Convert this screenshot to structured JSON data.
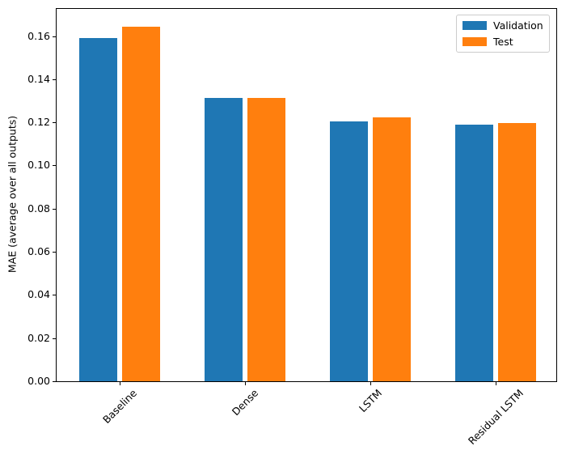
{
  "figure": {
    "background": "#ffffff",
    "text_color": "#000000",
    "axis_color": "#000000",
    "legend_border_color": "#cccccc"
  },
  "chart_data": {
    "type": "bar",
    "title": "",
    "xlabel": "",
    "ylabel": "MAE (average over all outputs)",
    "categories": [
      "Baseline",
      "Dense",
      "LSTM",
      "Residual LSTM"
    ],
    "series": [
      {
        "name": "Validation",
        "color": "#1f77b4",
        "values": [
          0.159,
          0.1315,
          0.1205,
          0.119
        ]
      },
      {
        "name": "Test",
        "color": "#ff7f0e",
        "values": [
          0.1645,
          0.1312,
          0.1222,
          0.1198
        ]
      }
    ],
    "ylim": [
      0,
      0.1726
    ],
    "yticks": [
      0.0,
      0.02,
      0.04,
      0.06,
      0.08,
      0.1,
      0.12,
      0.14,
      0.16
    ],
    "ytick_labels": [
      "0.00",
      "0.02",
      "0.04",
      "0.06",
      "0.08",
      "0.10",
      "0.12",
      "0.14",
      "0.16"
    ],
    "xtick_rotation_deg": 45,
    "grid": false,
    "legend": {
      "position": "upper right",
      "frame": true
    }
  }
}
